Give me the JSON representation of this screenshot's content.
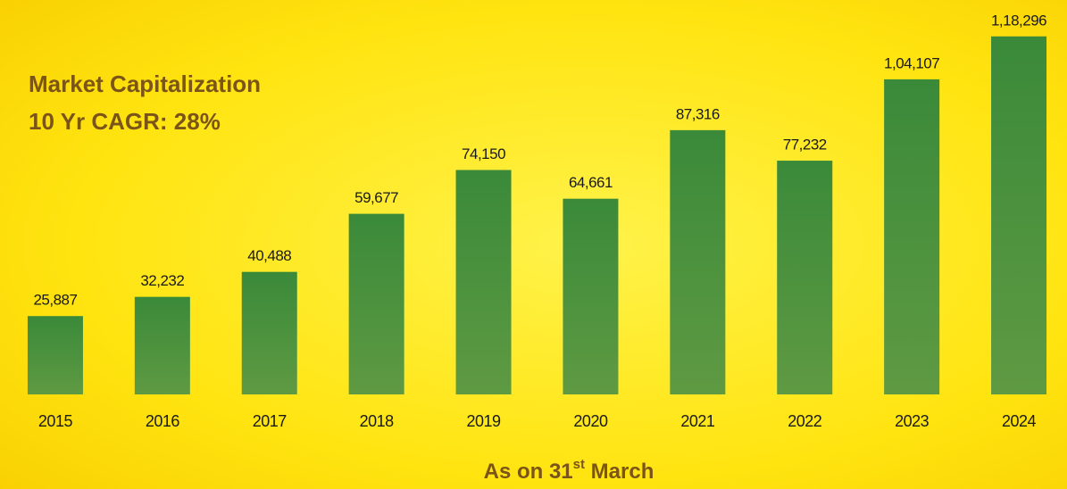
{
  "chart_data": {
    "type": "bar",
    "title": "Market Capitalization",
    "subtitle": "10 Yr CAGR: 28%",
    "x_label": [
      "As on 31",
      "st",
      " March"
    ],
    "categories": [
      "2015",
      "2016",
      "2017",
      "2018",
      "2019",
      "2020",
      "2021",
      "2022",
      "2023",
      "2024"
    ],
    "values": [
      25887,
      32232,
      40488,
      59677,
      74150,
      64661,
      87316,
      77232,
      104107,
      118296
    ],
    "value_labels": [
      "25,887",
      "32,232",
      "40,488",
      "59,677",
      "74,150",
      "64,661",
      "87,316",
      "77,232",
      "1,04,107",
      "1,18,296"
    ],
    "color": "#3f8c3a",
    "ylim": [
      0,
      120000
    ]
  }
}
